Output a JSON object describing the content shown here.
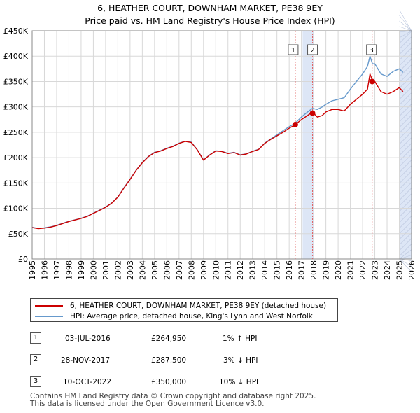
{
  "title": {
    "line1": "6, HEATHER COURT, DOWNHAM MARKET, PE38 9EY",
    "line2": "Price paid vs. HM Land Registry's House Price Index (HPI)"
  },
  "colors": {
    "price_line": "#cc0000",
    "hpi_line": "#6699cc",
    "highlight_band": "#dde6f6",
    "marker_line": "#e06060"
  },
  "chart_data": {
    "type": "line",
    "xlabel": "",
    "ylabel": "",
    "xlim": [
      1995,
      2026
    ],
    "ylim": [
      0,
      450000
    ],
    "y_ticks": [
      0,
      50000,
      100000,
      150000,
      200000,
      250000,
      300000,
      350000,
      400000,
      450000
    ],
    "y_tick_labels": [
      "£0",
      "£50K",
      "£100K",
      "£150K",
      "£200K",
      "£250K",
      "£300K",
      "£350K",
      "£400K",
      "£450K"
    ],
    "x_ticks": [
      "1995",
      "1996",
      "1997",
      "1998",
      "1999",
      "2000",
      "2001",
      "2002",
      "2003",
      "2004",
      "2005",
      "2006",
      "2007",
      "2008",
      "2009",
      "2010",
      "2011",
      "2012",
      "2013",
      "2014",
      "2015",
      "2016",
      "2017",
      "2018",
      "2019",
      "2020",
      "2021",
      "2022",
      "2023",
      "2024",
      "2025",
      "2026"
    ],
    "grid": true,
    "series": [
      {
        "name": "6, HEATHER COURT, DOWNHAM MARKET, PE38 9EY (detached house)",
        "color": "#cc0000",
        "x": [
          1995.0,
          1995.5,
          1996.0,
          1996.5,
          1997.0,
          1997.5,
          1998.0,
          1998.5,
          1999.0,
          1999.5,
          2000.0,
          2000.5,
          2001.0,
          2001.5,
          2002.0,
          2002.5,
          2003.0,
          2003.5,
          2004.0,
          2004.5,
          2005.0,
          2005.5,
          2006.0,
          2006.5,
          2007.0,
          2007.5,
          2008.0,
          2008.5,
          2009.0,
          2009.5,
          2010.0,
          2010.5,
          2011.0,
          2011.5,
          2012.0,
          2012.5,
          2013.0,
          2013.5,
          2014.0,
          2014.5,
          2015.0,
          2015.5,
          2016.0,
          2016.5,
          2017.0,
          2017.5,
          2017.9,
          2018.3,
          2018.7,
          2019.0,
          2019.5,
          2020.0,
          2020.5,
          2021.0,
          2021.5,
          2022.0,
          2022.4,
          2022.6,
          2022.8,
          2023.0,
          2023.5,
          2024.0,
          2024.5,
          2025.0,
          2025.3
        ],
        "values": [
          62000,
          60000,
          61000,
          63000,
          66000,
          70000,
          74000,
          77000,
          80000,
          84000,
          90000,
          96000,
          102000,
          110000,
          122000,
          140000,
          157000,
          175000,
          190000,
          202000,
          210000,
          213000,
          218000,
          222000,
          228000,
          232000,
          230000,
          215000,
          195000,
          205000,
          213000,
          212000,
          208000,
          210000,
          205000,
          207000,
          212000,
          216000,
          228000,
          236000,
          243000,
          250000,
          258000,
          265000,
          275000,
          283000,
          290000,
          280000,
          283000,
          290000,
          295000,
          295000,
          292000,
          305000,
          315000,
          325000,
          335000,
          365000,
          352000,
          350000,
          330000,
          325000,
          330000,
          338000,
          330000
        ]
      },
      {
        "name": "HPI: Average price, detached house, King's Lynn and West Norfolk",
        "color": "#6699cc",
        "x": [
          1995.0,
          1995.5,
          1996.0,
          1996.5,
          1997.0,
          1997.5,
          1998.0,
          1998.5,
          1999.0,
          1999.5,
          2000.0,
          2000.5,
          2001.0,
          2001.5,
          2002.0,
          2002.5,
          2003.0,
          2003.5,
          2004.0,
          2004.5,
          2005.0,
          2005.5,
          2006.0,
          2006.5,
          2007.0,
          2007.5,
          2008.0,
          2008.5,
          2009.0,
          2009.5,
          2010.0,
          2010.5,
          2011.0,
          2011.5,
          2012.0,
          2012.5,
          2013.0,
          2013.5,
          2014.0,
          2014.5,
          2015.0,
          2015.5,
          2016.0,
          2016.5,
          2017.0,
          2017.5,
          2017.9,
          2018.3,
          2018.7,
          2019.0,
          2019.5,
          2020.0,
          2020.5,
          2021.0,
          2021.5,
          2022.0,
          2022.4,
          2022.6,
          2022.8,
          2023.0,
          2023.5,
          2024.0,
          2024.5,
          2025.0,
          2025.3
        ],
        "values": [
          62500,
          60500,
          61500,
          63500,
          66500,
          70500,
          74500,
          77500,
          80500,
          84500,
          90500,
          96500,
          102500,
          110500,
          122500,
          140500,
          157500,
          175500,
          190500,
          202500,
          210500,
          213500,
          218500,
          222500,
          228500,
          232500,
          230500,
          215500,
          195500,
          205500,
          213500,
          212500,
          208500,
          210500,
          205500,
          207500,
          212500,
          216500,
          228500,
          237000,
          245000,
          253000,
          261000,
          268000,
          280000,
          290000,
          297000,
          295000,
          300000,
          305000,
          312000,
          315000,
          318000,
          335000,
          350000,
          365000,
          380000,
          400000,
          385000,
          385000,
          365000,
          360000,
          370000,
          375000,
          368000
        ]
      }
    ],
    "highlight_band": {
      "from": 2017.1,
      "to": 2018.0
    },
    "future_band": {
      "from": 2025.0,
      "to": 2026.0
    },
    "sales": [
      {
        "id": "1",
        "x": 2016.5,
        "price": 264950
      },
      {
        "id": "2",
        "x": 2017.91,
        "price": 287500
      },
      {
        "id": "3",
        "x": 2022.78,
        "price": 350000
      }
    ],
    "annotation_labels": [
      "1",
      "2",
      "3"
    ]
  },
  "legend": {
    "price_label": "6, HEATHER COURT, DOWNHAM MARKET, PE38 9EY (detached house)",
    "hpi_label": "HPI: Average price, detached house, King's Lynn and West Norfolk"
  },
  "transactions": [
    {
      "num": "1",
      "date": "03-JUL-2016",
      "price": "£264,950",
      "hpi": "1% ↑ HPI"
    },
    {
      "num": "2",
      "date": "28-NOV-2017",
      "price": "£287,500",
      "hpi": "3% ↓ HPI"
    },
    {
      "num": "3",
      "date": "10-OCT-2022",
      "price": "£350,000",
      "hpi": "10% ↓ HPI"
    }
  ],
  "footer": {
    "line1": "Contains HM Land Registry data © Crown copyright and database right 2025.",
    "line2": "This data is licensed under the Open Government Licence v3.0."
  }
}
